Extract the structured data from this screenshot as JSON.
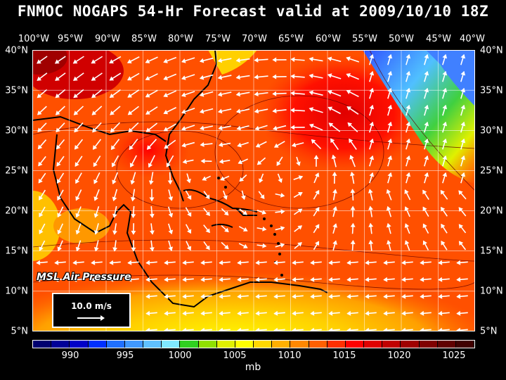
{
  "title": "FNMOC NOGAPS 54-Hr Forecast valid at 2009/10/10 18Z",
  "lon_labels": [
    "100°W",
    "95°W",
    "90°W",
    "85°W",
    "80°W",
    "75°W",
    "70°W",
    "65°W",
    "60°W",
    "55°W",
    "50°W",
    "45°W",
    "40°W"
  ],
  "lat_labels": [
    "40°N",
    "35°N",
    "30°N",
    "25°N",
    "20°N",
    "15°N",
    "10°N",
    "5°N"
  ],
  "overlay_label": "MSL Air Pressure",
  "reference_vector": {
    "label": "10.0 m/s"
  },
  "colorbar": {
    "colors": [
      "#000070",
      "#000098",
      "#0000c8",
      "#0030ff",
      "#2070ff",
      "#4098ff",
      "#60c0ff",
      "#80e8ff",
      "#30d020",
      "#90e000",
      "#e0f000",
      "#ffff00",
      "#ffd800",
      "#ffb000",
      "#ff8800",
      "#ff6000",
      "#ff3000",
      "#ff0000",
      "#e00000",
      "#c00000",
      "#a00000",
      "#800000",
      "#600000",
      "#400000"
    ],
    "tick_labels": [
      "990",
      "995",
      "1000",
      "1005",
      "1010",
      "1015",
      "1020",
      "1025"
    ],
    "units": "mb"
  },
  "colors": {
    "background": "#000000",
    "text": "#ffffff",
    "coast": "#000000",
    "grid": "#ffffff",
    "vectors": "#ffffff"
  }
}
